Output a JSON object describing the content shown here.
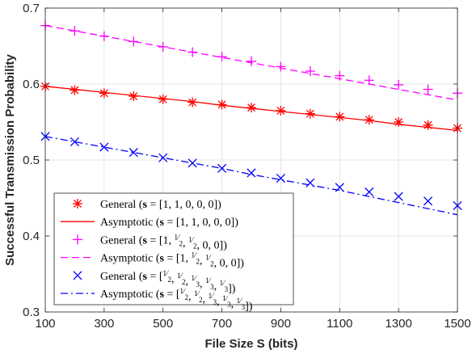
{
  "chart_data": {
    "type": "line",
    "xlabel": "File Size S (bits)",
    "ylabel": "Successful Transmission Probability",
    "xlim": [
      100,
      1500
    ],
    "ylim": [
      0.3,
      0.7
    ],
    "xticks": [
      100,
      300,
      500,
      700,
      900,
      1100,
      1300,
      1500
    ],
    "yticks": [
      0.3,
      0.4,
      0.5,
      0.6,
      0.7
    ],
    "xtick_labels": [
      "100",
      "300",
      "500",
      "700",
      "900",
      "1100",
      "1300",
      "1500"
    ],
    "ytick_labels": [
      "0.3",
      "0.4",
      "0.5",
      "0.6",
      "0.7"
    ],
    "grid": true,
    "legend_position": "bottom-left",
    "x": [
      100,
      200,
      300,
      400,
      500,
      600,
      700,
      800,
      900,
      1000,
      1100,
      1200,
      1300,
      1400,
      1500
    ],
    "series": [
      {
        "name": "General (s = [1, 1, 0, 0, 0])",
        "style": "marker",
        "marker": "asterisk",
        "color": "#ff0000",
        "values": [
          0.597,
          0.592,
          0.588,
          0.584,
          0.58,
          0.576,
          0.573,
          0.569,
          0.565,
          0.561,
          0.557,
          0.553,
          0.55,
          0.546,
          0.542
        ]
      },
      {
        "name": "Asymptotic (s = [1, 1, 0, 0, 0])",
        "style": "line",
        "dash": "solid",
        "color": "#ff0000",
        "values": [
          0.597,
          0.593,
          0.589,
          0.585,
          0.581,
          0.577,
          0.572,
          0.568,
          0.564,
          0.56,
          0.556,
          0.552,
          0.547,
          0.543,
          0.539
        ]
      },
      {
        "name": "General (s = [1, 1/2, 1/2, 0, 0])",
        "style": "marker",
        "marker": "plus",
        "color": "#ff00ff",
        "values": [
          0.677,
          0.67,
          0.663,
          0.656,
          0.649,
          0.642,
          0.636,
          0.63,
          0.623,
          0.617,
          0.611,
          0.605,
          0.599,
          0.593,
          0.588
        ]
      },
      {
        "name": "Asymptotic (s = [1, 1/2, 1/2, 0, 0])",
        "style": "line",
        "dash": "dashed",
        "color": "#ff00ff",
        "values": [
          0.677,
          0.67,
          0.663,
          0.656,
          0.649,
          0.642,
          0.635,
          0.628,
          0.621,
          0.614,
          0.607,
          0.6,
          0.593,
          0.586,
          0.579
        ]
      },
      {
        "name": "General (s = [1/2, 1/2, 1/3, 1/3, 1/3])",
        "style": "marker",
        "marker": "x",
        "color": "#0000ff",
        "values": [
          0.531,
          0.524,
          0.517,
          0.51,
          0.503,
          0.496,
          0.489,
          0.483,
          0.476,
          0.47,
          0.464,
          0.458,
          0.452,
          0.446,
          0.44
        ]
      },
      {
        "name": "Asymptotic (s = [1/2, 1/2, 1/3, 1/3, 1/3])",
        "style": "line",
        "dash": "dashdot",
        "color": "#0000ff",
        "values": [
          0.531,
          0.524,
          0.517,
          0.51,
          0.503,
          0.496,
          0.489,
          0.481,
          0.474,
          0.467,
          0.46,
          0.452,
          0.444,
          0.436,
          0.428
        ]
      }
    ],
    "legend": [
      {
        "label": "General",
        "prefix": "(s = [",
        "vector": [
          "1",
          "1",
          "0",
          "0",
          "0"
        ],
        "suffix": "])"
      },
      {
        "label": "Asymptotic",
        "prefix": "(s = [",
        "vector": [
          "1",
          "1",
          "0",
          "0",
          "0"
        ],
        "suffix": "])"
      },
      {
        "label": "General",
        "prefix": "(s = [",
        "vector": [
          "1",
          "1/2",
          "1/2",
          "0",
          "0"
        ],
        "suffix": "])"
      },
      {
        "label": "Asymptotic",
        "prefix": "(s = [",
        "vector": [
          "1",
          "1/2",
          "1/2",
          "0",
          "0"
        ],
        "suffix": "])"
      },
      {
        "label": "General",
        "prefix": "(s = [",
        "vector": [
          "1/2",
          "1/2",
          "1/3",
          "1/3",
          "1/3"
        ],
        "suffix": "])"
      },
      {
        "label": "Asymptotic",
        "prefix": "(s = [",
        "vector": [
          "1/2",
          "1/2",
          "1/3",
          "1/3",
          "1/3"
        ],
        "suffix": "])"
      }
    ]
  }
}
